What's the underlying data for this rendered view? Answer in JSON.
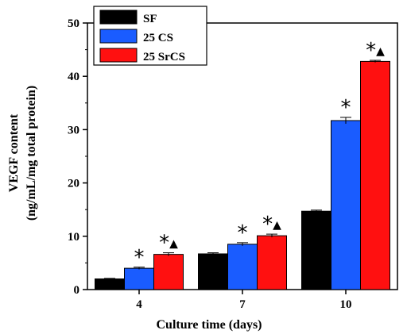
{
  "chart_data": {
    "type": "bar",
    "categories": [
      "4",
      "7",
      "10"
    ],
    "xlabel": "Culture time (days)",
    "ylabel_line1": "VEGF content",
    "ylabel_line2": "(ng/mL/mg total protein)",
    "ylim": [
      0,
      50
    ],
    "yticks": [
      "0",
      "10",
      "20",
      "30",
      "40",
      "50"
    ],
    "grid": false,
    "legend_position": "top-left",
    "series": [
      {
        "name": "SF",
        "color": "#000000",
        "values": [
          2.0,
          6.7,
          14.7
        ],
        "errors": [
          0.1,
          0.2,
          0.2
        ],
        "marks": [
          "",
          "",
          ""
        ]
      },
      {
        "name": "25 CS",
        "color": "#1a5cff",
        "values": [
          4.0,
          8.5,
          31.7
        ],
        "errors": [
          0.2,
          0.3,
          0.6
        ],
        "marks": [
          "*",
          "*",
          "*"
        ]
      },
      {
        "name": "25 SrCS",
        "color": "#ff1010",
        "values": [
          6.6,
          10.1,
          42.8
        ],
        "errors": [
          0.3,
          0.3,
          0.2
        ],
        "marks": [
          "*▲",
          "*▲",
          "*▲"
        ]
      }
    ]
  }
}
